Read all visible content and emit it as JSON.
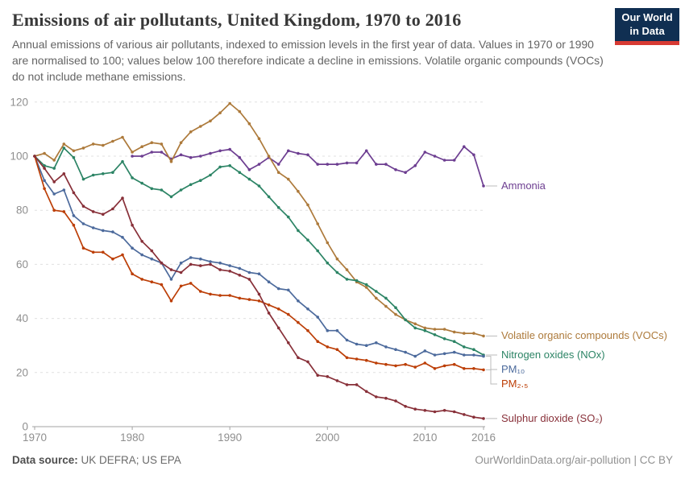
{
  "header": {
    "logo": {
      "line1": "Our World",
      "line2": "in Data"
    }
  },
  "footer": {
    "datasource_label": "Data source:",
    "datasource_value": " UK DEFRA; US EPA",
    "attribution": "OurWorldinData.org/air-pollution | CC BY"
  },
  "chart_data": {
    "type": "line",
    "title": "Emissions of air pollutants, United Kingdom, 1970 to 2016",
    "subtitle": "Annual emissions of various air pollutants, indexed to emission levels in the first year of data. Values in 1970 or 1990 are normalised to 100; values below 100 therefore indicate a decline in emissions. Volatile organic compounds (VOCs) do not include methane emissions.",
    "xlabel": "",
    "ylabel": "",
    "xlim": [
      1970,
      2016
    ],
    "ylim": [
      0,
      120
    ],
    "x_ticks": [
      1970,
      1980,
      1990,
      2000,
      2010,
      2016
    ],
    "y_ticks": [
      0,
      20,
      40,
      60,
      80,
      100,
      120
    ],
    "grid": "dashed-horizontal",
    "legend_position": "right-of-lines",
    "axis_color": "#a3a3a3",
    "grid_color": "#e0e0e0",
    "connector_color": "#bbbbbb",
    "series": [
      {
        "name": "Ammonia",
        "color": "#6d3e91",
        "start_year": 1980,
        "values": [
          100,
          100,
          101.5,
          101.5,
          99,
          100.5,
          99.5,
          100,
          101,
          102,
          102.5,
          99.5,
          95,
          97,
          99.5,
          97,
          102,
          101,
          100.5,
          97,
          97,
          97,
          97.5,
          97.5,
          102,
          97,
          97,
          95,
          94,
          96.5,
          101.5,
          100,
          98.5,
          98.5,
          103.5,
          100.5,
          89
        ]
      },
      {
        "name": "Volatile organic compounds (VOCs)",
        "color": "#ad7a3b",
        "start_year": 1970,
        "values": [
          100,
          101,
          98.5,
          104.5,
          102,
          103,
          104.5,
          104,
          105.5,
          107,
          101.5,
          103.5,
          105,
          104.5,
          98,
          105,
          109,
          111,
          113,
          116,
          119.5,
          116.5,
          112,
          106.5,
          100,
          94,
          91.5,
          87,
          82,
          75,
          68,
          62,
          58,
          53.5,
          51.5,
          47.5,
          44.5,
          41.5,
          39.5,
          38,
          36.5,
          36,
          36,
          35,
          34.5,
          34.5,
          33.5
        ]
      },
      {
        "name": "Nitrogen oxides (NOx)",
        "color": "#2c8465",
        "start_year": 1970,
        "values": [
          100,
          96.5,
          95.5,
          103,
          99.5,
          91.5,
          93,
          93.5,
          94,
          98,
          92,
          90,
          88,
          87.5,
          85,
          87.5,
          89.5,
          91,
          93,
          96,
          96.5,
          94,
          91.5,
          89,
          85,
          81,
          77.5,
          72.5,
          69,
          65,
          60.5,
          57,
          54.5,
          54,
          52.5,
          50,
          47.5,
          44,
          39.5,
          36.5,
          35.5,
          34,
          32.5,
          31.5,
          29.5,
          28.5,
          26.5
        ]
      },
      {
        "name": "PM₁₀",
        "color": "#4c6a9c",
        "start_year": 1970,
        "values": [
          100,
          91,
          86,
          87.5,
          78,
          75,
          73.5,
          72.5,
          72,
          70,
          66,
          63.5,
          62,
          60.5,
          54.5,
          60.5,
          62.5,
          62,
          61,
          60.5,
          59.5,
          58.5,
          57,
          56.5,
          53.5,
          51,
          50.5,
          46.5,
          43.5,
          40.5,
          35.5,
          35.5,
          32,
          30.5,
          30,
          31,
          29.5,
          28.5,
          27.5,
          26,
          28,
          26.5,
          27,
          27.5,
          26.5,
          26.5,
          26
        ]
      },
      {
        "name": "PM₂.₅",
        "color": "#bc3e06",
        "start_year": 1970,
        "values": [
          100,
          88,
          80,
          79.5,
          74.5,
          66,
          64.5,
          64.5,
          62,
          63.5,
          56.5,
          54.5,
          53.5,
          52.5,
          46.5,
          52,
          53,
          50,
          49,
          48.5,
          48.5,
          47.5,
          47,
          46.5,
          45,
          43.5,
          41.5,
          38.5,
          35.5,
          31.5,
          29.5,
          28.5,
          25.5,
          25,
          24.5,
          23.5,
          23,
          22.5,
          23,
          22,
          23.5,
          21.5,
          22.5,
          23,
          21.5,
          21.5,
          21
        ]
      },
      {
        "name": "Sulphur dioxide (SO₂)",
        "color": "#883039",
        "start_year": 1970,
        "values": [
          100,
          95.5,
          90.5,
          93.5,
          86.5,
          81.5,
          79.5,
          78.5,
          80.5,
          84.5,
          74.5,
          68.5,
          65,
          60.5,
          58,
          57,
          60,
          59.5,
          60,
          58,
          57.5,
          56,
          54.5,
          49,
          42,
          36.5,
          31,
          25.5,
          24,
          19,
          18.5,
          17,
          15.5,
          15.5,
          13,
          11,
          10.5,
          9.5,
          7.5,
          6.5,
          6,
          5.5,
          6,
          5.5,
          4.5,
          3.5,
          3
        ]
      }
    ]
  }
}
